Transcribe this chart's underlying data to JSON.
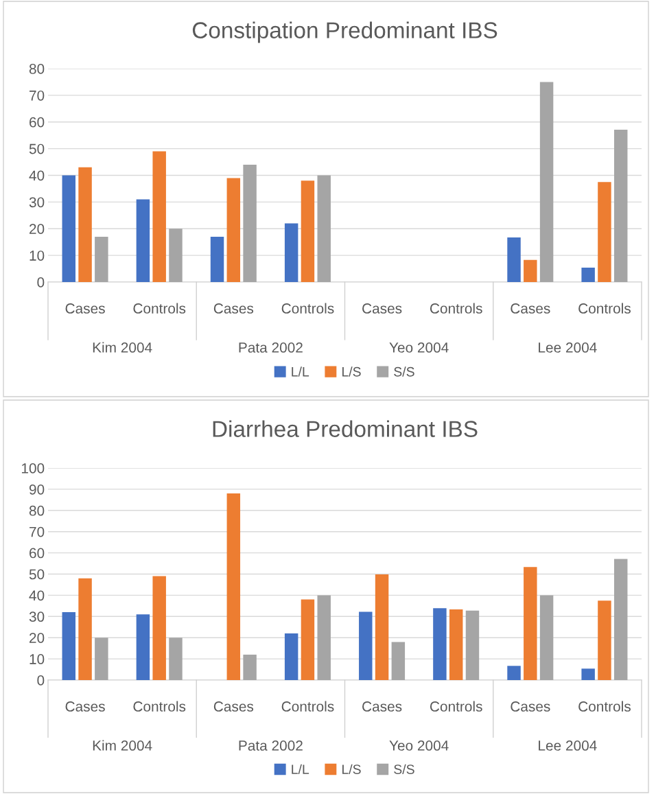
{
  "chart_data": [
    {
      "type": "bar",
      "title": "Constipation Predominant IBS",
      "categories": [
        "Cases",
        "Controls",
        "Cases",
        "Controls",
        "Cases",
        "Controls",
        "Cases",
        "Controls"
      ],
      "annotations": [
        "Kim 2004",
        "Pata 2002",
        "Yeo 2004",
        "Lee 2004"
      ],
      "series": [
        {
          "name": "L/L",
          "color": "#4472c4",
          "values": [
            40,
            31,
            17,
            22,
            null,
            null,
            16.7,
            5.4
          ]
        },
        {
          "name": "L/S",
          "color": "#ed7d31",
          "values": [
            43,
            49,
            39,
            38,
            null,
            null,
            8.3,
            37.5
          ]
        },
        {
          "name": "S/S",
          "color": "#a5a5a5",
          "values": [
            17,
            20,
            44,
            40,
            null,
            null,
            75,
            57.1
          ]
        }
      ],
      "ylim": [
        0,
        80
      ],
      "yticks": [
        0,
        10,
        20,
        30,
        40,
        50,
        60,
        70,
        80
      ],
      "grid": "y",
      "legend": "bottom"
    },
    {
      "type": "bar",
      "title": "Diarrhea Predominant IBS",
      "categories": [
        "Cases",
        "Controls",
        "Cases",
        "Controls",
        "Cases",
        "Controls",
        "Cases",
        "Controls"
      ],
      "annotations": [
        "Kim 2004",
        "Pata 2002",
        "Yeo 2004",
        "Lee 2004"
      ],
      "series": [
        {
          "name": "L/L",
          "color": "#4472c4",
          "values": [
            32,
            31,
            null,
            22,
            32.2,
            33.9,
            6.7,
            5.4
          ]
        },
        {
          "name": "L/S",
          "color": "#ed7d31",
          "values": [
            48,
            49,
            88,
            38,
            49.8,
            33.3,
            53.3,
            37.5
          ]
        },
        {
          "name": "S/S",
          "color": "#a5a5a5",
          "values": [
            20,
            20,
            12,
            40,
            18,
            32.8,
            40,
            57.1
          ]
        }
      ],
      "ylim": [
        0,
        100
      ],
      "yticks": [
        0,
        10,
        20,
        30,
        40,
        50,
        60,
        70,
        80,
        90,
        100
      ],
      "grid": "y",
      "legend": "bottom"
    }
  ]
}
